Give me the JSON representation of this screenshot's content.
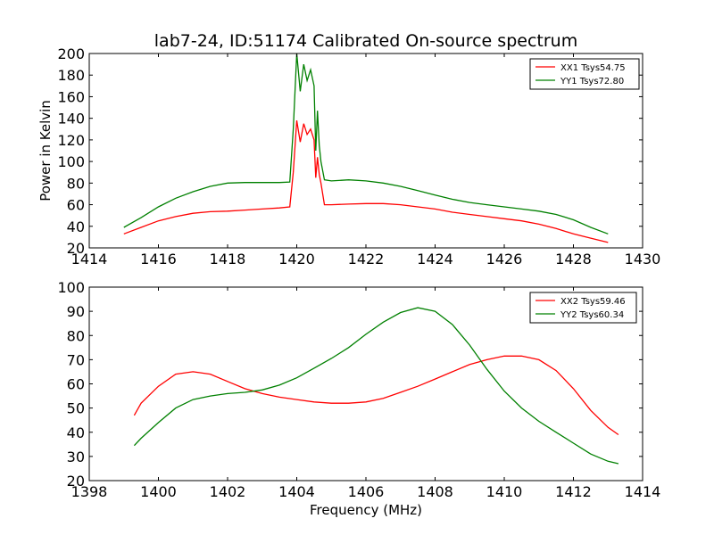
{
  "figure": {
    "title": "lab7-24, ID:51174 Calibrated On-source spectrum"
  },
  "chart_data": [
    {
      "type": "line",
      "title": "lab7-24, ID:51174 Calibrated On-source spectrum",
      "xlabel": "",
      "ylabel": "Power in Kelvin",
      "xlim": [
        1414,
        1430
      ],
      "ylim": [
        20,
        200
      ],
      "xticks": [
        1414,
        1416,
        1418,
        1420,
        1422,
        1424,
        1426,
        1428,
        1430
      ],
      "yticks": [
        20,
        40,
        60,
        80,
        100,
        120,
        140,
        160,
        180,
        200
      ],
      "legend_position": "top-right",
      "series": [
        {
          "name": "XX1 Tsys54.75",
          "color": "#ff0000",
          "x": [
            1415.0,
            1415.5,
            1416.0,
            1416.5,
            1417.0,
            1417.5,
            1418.0,
            1418.5,
            1419.0,
            1419.5,
            1419.8,
            1419.9,
            1420.0,
            1420.1,
            1420.2,
            1420.3,
            1420.4,
            1420.5,
            1420.55,
            1420.6,
            1420.65,
            1420.7,
            1420.8,
            1421.0,
            1421.5,
            1422.0,
            1422.5,
            1423.0,
            1423.5,
            1424.0,
            1424.5,
            1425.0,
            1425.5,
            1426.0,
            1426.5,
            1427.0,
            1427.5,
            1428.0,
            1428.5,
            1429.0
          ],
          "y": [
            33,
            39,
            45,
            49,
            52,
            53.5,
            54,
            55,
            56,
            57,
            58,
            90,
            138,
            118,
            135,
            125,
            130,
            120,
            85,
            104,
            88,
            80,
            60,
            60,
            60.5,
            61,
            61,
            60,
            58,
            56,
            53,
            51,
            49,
            47,
            45,
            42,
            38,
            33,
            29,
            25
          ]
        },
        {
          "name": "YY1 Tsys72.80",
          "color": "#008000",
          "x": [
            1415.0,
            1415.5,
            1416.0,
            1416.5,
            1417.0,
            1417.5,
            1418.0,
            1418.5,
            1419.0,
            1419.5,
            1419.8,
            1419.9,
            1420.0,
            1420.1,
            1420.2,
            1420.3,
            1420.4,
            1420.5,
            1420.55,
            1420.6,
            1420.65,
            1420.7,
            1420.8,
            1421.0,
            1421.5,
            1422.0,
            1422.5,
            1423.0,
            1423.5,
            1424.0,
            1424.5,
            1425.0,
            1425.5,
            1426.0,
            1426.5,
            1427.0,
            1427.5,
            1428.0,
            1428.5,
            1429.0
          ],
          "y": [
            39,
            48,
            58,
            66,
            72,
            77,
            80,
            80.5,
            80.5,
            80.5,
            81,
            130,
            200,
            165,
            190,
            175,
            185,
            170,
            110,
            147,
            115,
            100,
            83,
            82,
            83,
            82,
            80,
            77,
            73,
            69,
            65,
            62,
            60,
            58,
            56,
            54,
            51,
            46,
            39,
            33
          ]
        }
      ]
    },
    {
      "type": "line",
      "title": "",
      "xlabel": "Frequency (MHz)",
      "ylabel": "",
      "xlim": [
        1398,
        1414
      ],
      "ylim": [
        20,
        100
      ],
      "xticks": [
        1398,
        1400,
        1402,
        1404,
        1406,
        1408,
        1410,
        1412,
        1414
      ],
      "yticks": [
        20,
        30,
        40,
        50,
        60,
        70,
        80,
        90,
        100
      ],
      "legend_position": "top-right",
      "series": [
        {
          "name": "XX2 Tsys59.46",
          "color": "#ff0000",
          "x": [
            1399.3,
            1399.5,
            1400.0,
            1400.5,
            1401.0,
            1401.5,
            1402.0,
            1402.5,
            1403.0,
            1403.5,
            1404.0,
            1404.5,
            1405.0,
            1405.5,
            1406.0,
            1406.5,
            1407.0,
            1407.5,
            1408.0,
            1408.5,
            1409.0,
            1409.5,
            1410.0,
            1410.5,
            1411.0,
            1411.5,
            1412.0,
            1412.5,
            1413.0,
            1413.3
          ],
          "y": [
            47,
            52,
            59,
            64,
            65,
            64,
            61,
            58,
            56,
            54.5,
            53.5,
            52.5,
            52,
            52,
            52.5,
            54,
            56.5,
            59,
            62,
            65,
            68,
            70,
            71.5,
            71.5,
            70,
            65.5,
            58,
            49,
            42,
            39
          ]
        },
        {
          "name": "YY2 Tsys60.34",
          "color": "#008000",
          "x": [
            1399.3,
            1399.5,
            1400.0,
            1400.5,
            1401.0,
            1401.5,
            1402.0,
            1402.5,
            1403.0,
            1403.5,
            1404.0,
            1404.5,
            1405.0,
            1405.5,
            1406.0,
            1406.5,
            1407.0,
            1407.5,
            1408.0,
            1408.5,
            1409.0,
            1409.5,
            1410.0,
            1410.5,
            1411.0,
            1411.5,
            1412.0,
            1412.5,
            1413.0,
            1413.3
          ],
          "y": [
            34.5,
            37.5,
            44,
            50,
            53.5,
            55,
            56,
            56.5,
            57.5,
            59.5,
            62.5,
            66.5,
            70.5,
            75,
            80.5,
            85.5,
            89.5,
            91.5,
            90,
            84.5,
            76,
            66,
            57,
            50,
            44.5,
            40,
            35.5,
            31,
            28,
            27
          ]
        }
      ]
    }
  ]
}
